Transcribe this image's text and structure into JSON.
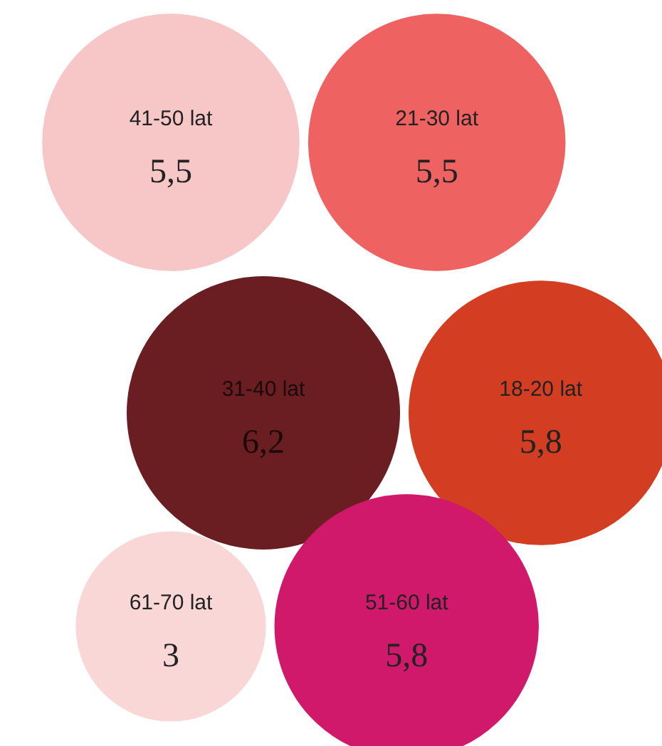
{
  "chart_data": {
    "type": "other",
    "categories": [
      "41-50 lat",
      "21-30 lat",
      "31-40 lat",
      "18-20 lat",
      "61-70 lat",
      "51-60 lat"
    ],
    "values": [
      5.5,
      5.5,
      6.2,
      5.8,
      3,
      5.8
    ],
    "value_labels": [
      "5,5",
      "5,5",
      "6,2",
      "5,8",
      "3",
      "5,8"
    ],
    "colors": [
      "#f7c6c6",
      "#ef6262",
      "#6b1e22",
      "#d33d22",
      "#f9d7d7",
      "#d0196a"
    ]
  }
}
